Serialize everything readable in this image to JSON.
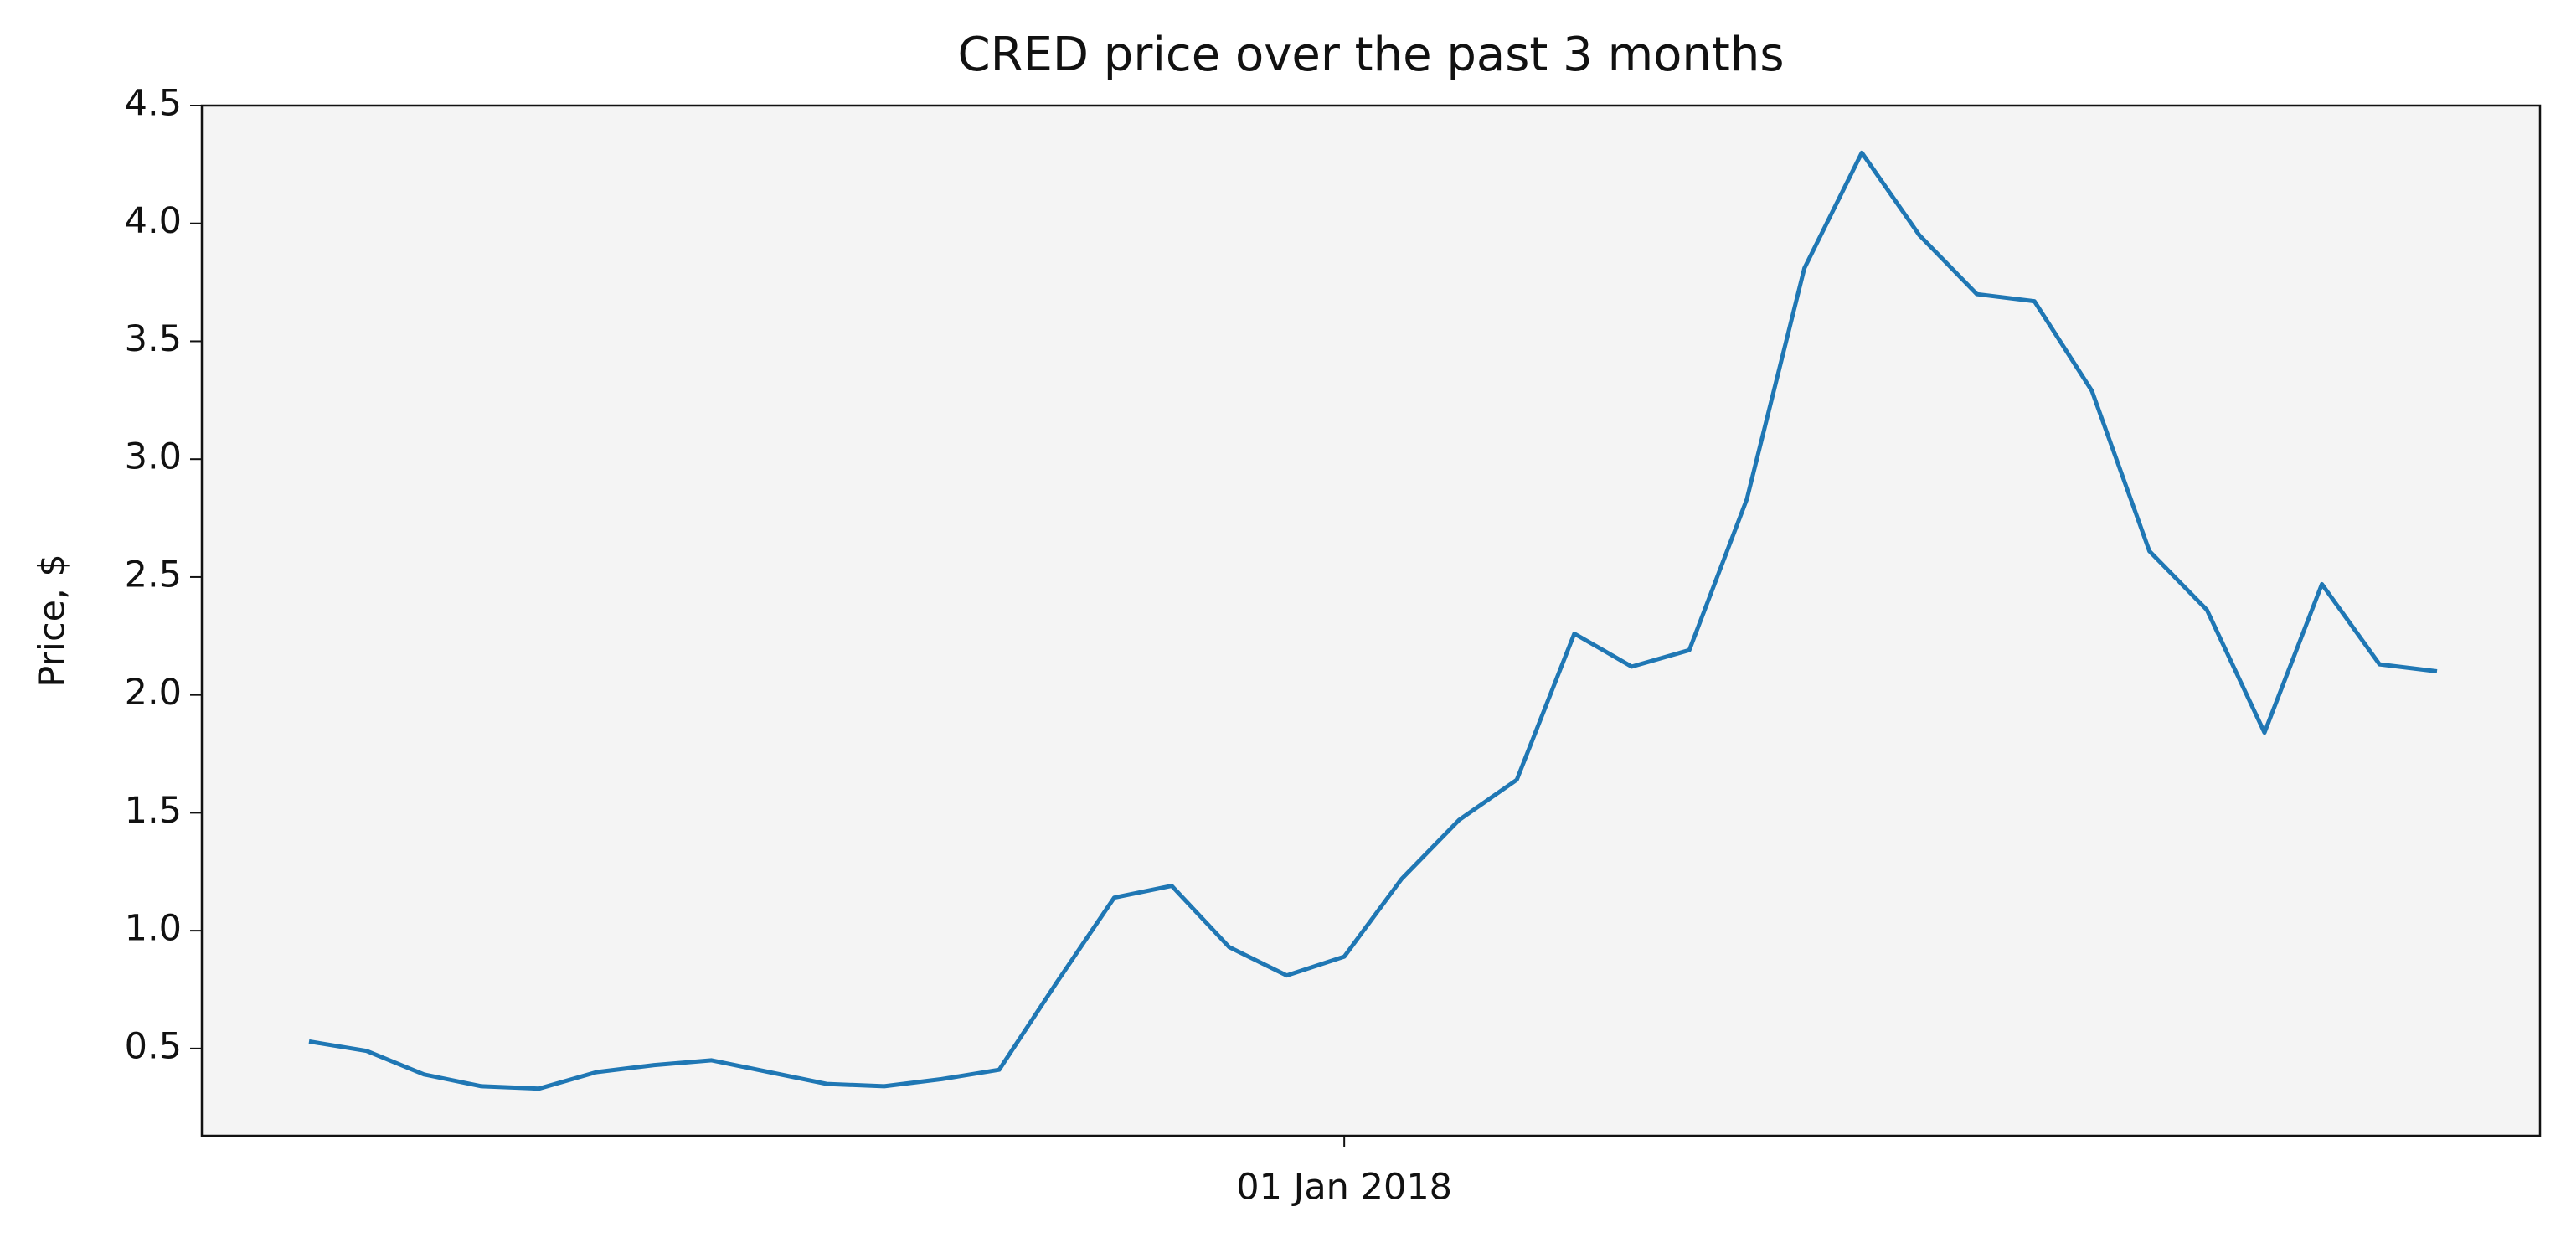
{
  "chart_data": {
    "type": "line",
    "title": "CRED price over the past 3 months",
    "y_label": "Price, $",
    "color": "#1f77b4",
    "categories": [
      null,
      null,
      null,
      null,
      null,
      null,
      null,
      null,
      null,
      null,
      null,
      null,
      null,
      null,
      null,
      null,
      null,
      null,
      "01 Jan 2018",
      null,
      null,
      null,
      null,
      null,
      null,
      null,
      null,
      null,
      null,
      null,
      null,
      null,
      null,
      null,
      null,
      null,
      null,
      null
    ],
    "values": [
      0.53,
      0.49,
      0.39,
      0.34,
      0.33,
      0.4,
      0.43,
      0.45,
      0.4,
      0.35,
      0.34,
      0.37,
      0.41,
      0.78,
      1.14,
      1.19,
      0.93,
      0.81,
      0.89,
      1.22,
      1.47,
      1.64,
      2.26,
      2.12,
      2.19,
      2.83,
      3.81,
      4.3,
      3.95,
      3.7,
      3.67,
      3.29,
      2.61,
      2.36,
      1.84,
      2.47,
      2.13,
      2.1
    ],
    "ylim": [
      0.13,
      4.5
    ],
    "yticks": [
      0.5,
      {
        "value": 1,
        "label": "1.0"
      },
      1.5,
      {
        "value": 2,
        "label": "2.0"
      },
      2.5,
      {
        "value": 3,
        "label": "3.0"
      },
      3.5,
      {
        "value": 4,
        "label": "4.0"
      },
      4.5
    ],
    "grid": false
  }
}
